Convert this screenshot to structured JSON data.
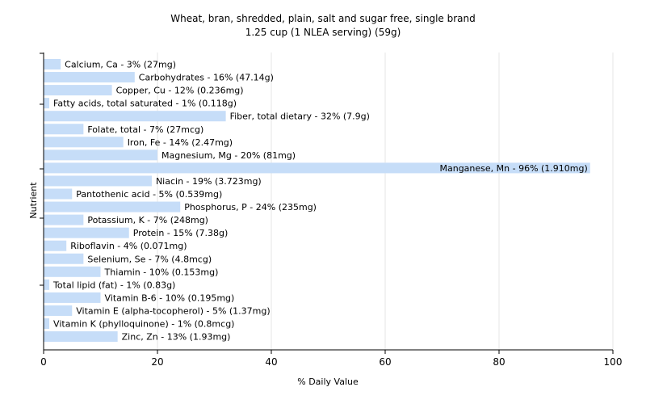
{
  "chart_data": {
    "type": "bar",
    "orientation": "horizontal",
    "title": "Wheat, bran, shredded, plain, salt and sugar free, single brand",
    "subtitle": "1.25 cup (1 NLEA serving) (59g)",
    "xlabel": "% Daily Value",
    "ylabel": "Nutrient",
    "xlim": [
      0,
      100
    ],
    "xticks": [
      0,
      20,
      40,
      60,
      80,
      100
    ],
    "grid": "vertical",
    "bar_color": "#c6ddf8",
    "categories": [
      "Calcium, Ca",
      "Carbohydrates",
      "Copper, Cu",
      "Fatty acids, total saturated",
      "Fiber, total dietary",
      "Folate, total",
      "Iron, Fe",
      "Magnesium, Mg",
      "Manganese, Mn",
      "Niacin",
      "Pantothenic acid",
      "Phosphorus, P",
      "Potassium, K",
      "Protein",
      "Riboflavin",
      "Selenium, Se",
      "Thiamin",
      "Total lipid (fat)",
      "Vitamin B-6",
      "Vitamin E (alpha-tocopherol)",
      "Vitamin K (phylloquinone)",
      "Zinc, Zn"
    ],
    "values": [
      3,
      16,
      12,
      1,
      32,
      7,
      14,
      20,
      96,
      19,
      5,
      24,
      7,
      15,
      4,
      7,
      10,
      1,
      10,
      5,
      1,
      13
    ],
    "labels": [
      "Calcium, Ca - 3% (27mg)",
      "Carbohydrates - 16% (47.14g)",
      "Copper, Cu - 12% (0.236mg)",
      "Fatty acids, total saturated - 1% (0.118g)",
      "Fiber, total dietary - 32% (7.9g)",
      "Folate, total - 7% (27mcg)",
      "Iron, Fe - 14% (2.47mg)",
      "Magnesium, Mg - 20% (81mg)",
      "Manganese, Mn - 96% (1.910mg)",
      "Niacin - 19% (3.723mg)",
      "Pantothenic acid - 5% (0.539mg)",
      "Phosphorus, P - 24% (235mg)",
      "Potassium, K - 7% (248mg)",
      "Protein - 15% (7.38g)",
      "Riboflavin - 4% (0.071mg)",
      "Selenium, Se - 7% (4.8mcg)",
      "Thiamin - 10% (0.153mg)",
      "Total lipid (fat) - 1% (0.83g)",
      "Vitamin B-6 - 10% (0.195mg)",
      "Vitamin E (alpha-tocopherol) - 5% (1.37mg)",
      "Vitamin K (phylloquinone) - 1% (0.8mcg)",
      "Zinc, Zn - 13% (1.93mg)"
    ]
  }
}
